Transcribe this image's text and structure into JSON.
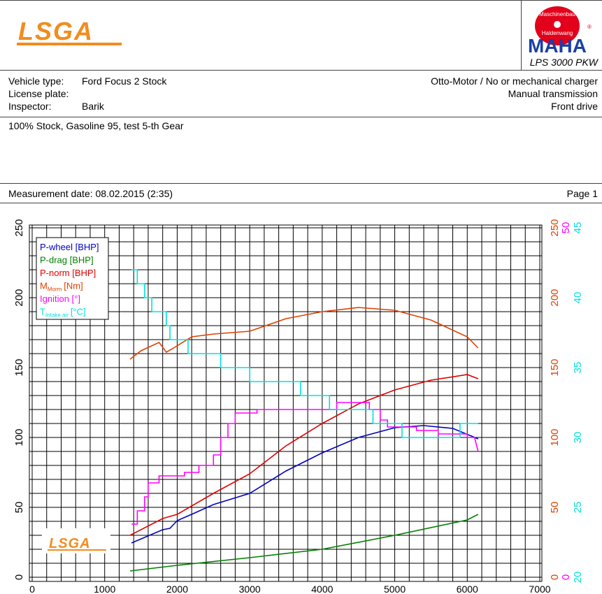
{
  "header": {
    "logo": "LSGA",
    "maha_top": "Maschinenbau",
    "maha_bottom": "Haldenwang",
    "maha_name": "MAHA",
    "maha_reg": "®",
    "model": "LPS 3000 PKW"
  },
  "vehicle": {
    "type_label": "Vehicle type:",
    "type": "Ford Focus 2 Stock",
    "plate_label": "License plate:",
    "inspector_label": "Inspector:",
    "inspector": "Barik",
    "engine": "Otto-Motor / No or mechanical charger",
    "transmission": "Manual transmission",
    "drive": "Front drive"
  },
  "comment": "100% Stock, Gasoline 95, test 5-th Gear",
  "measurement": "Measurement date: 08.02.2015 (2:35)",
  "page": "Page 1",
  "chart_data": {
    "type": "line",
    "xlim": [
      0,
      7000
    ],
    "xticks": [
      0,
      1000,
      2000,
      3000,
      4000,
      5000,
      6000,
      7000
    ],
    "ylim": [
      0,
      250
    ],
    "yticks": [
      0,
      50,
      100,
      150,
      200,
      250
    ],
    "y2lim": [
      0,
      250
    ],
    "y2ticks": [
      0,
      50,
      100,
      150,
      200,
      250
    ],
    "y3lim": [
      0,
      50
    ],
    "y3ticks": [
      0,
      50
    ],
    "y4lim": [
      20,
      45
    ],
    "y4ticks": [
      20,
      25,
      30,
      35,
      40,
      45
    ],
    "grid": {
      "x_step": 200,
      "y_step": 10
    },
    "legend": "upper left",
    "series": [
      {
        "name": "P-wheel [BHP]",
        "color": "#0000c0",
        "x": [
          1370,
          1800,
          1900,
          2000,
          2200,
          2500,
          3000,
          3500,
          4000,
          4500,
          5000,
          5400,
          5800,
          6150
        ],
        "values": [
          24.5,
          34,
          35,
          40.5,
          45,
          52,
          60,
          76,
          89,
          100,
          107,
          108.5,
          106.5,
          99
        ]
      },
      {
        "name": "P-drag [BHP]",
        "color": "#008000",
        "x": [
          1350,
          2000,
          3000,
          4000,
          5000,
          6000,
          6150
        ],
        "values": [
          4.5,
          8.5,
          14,
          20,
          30,
          41,
          45
        ]
      },
      {
        "name": "P-norm [BHP]",
        "color": "#e00000",
        "x": [
          1350,
          1800,
          2000,
          2500,
          3000,
          3500,
          4000,
          4500,
          5000,
          5500,
          6000,
          6150
        ],
        "values": [
          30,
          42,
          45,
          60,
          74,
          94,
          110,
          124,
          134,
          141,
          145,
          142
        ]
      },
      {
        "name": "M",
        "subscript": "Morm",
        "unit": "[Nm]",
        "color": "#e04000",
        "axis": "y2",
        "x": [
          1350,
          1500,
          1750,
          1850,
          1950,
          2200,
          2500,
          3000,
          3500,
          4000,
          4500,
          5000,
          5500,
          6000,
          6150
        ],
        "values": [
          156,
          162,
          168,
          161,
          164,
          172,
          174,
          176,
          185,
          190,
          193,
          191,
          184,
          172,
          164
        ]
      },
      {
        "name": "Ignition [°]",
        "color": "#ff00ff",
        "axis": "y3",
        "x": [
          1370,
          1450,
          1450,
          1550,
          1550,
          1600,
          1600,
          1750,
          1750,
          2100,
          2100,
          2300,
          2300,
          2500,
          2500,
          2600,
          2600,
          2700,
          2700,
          2800,
          2800,
          3100,
          3100,
          4200,
          4200,
          4650,
          4650,
          4800,
          4800,
          4900,
          4900,
          5300,
          5300,
          5600,
          5600,
          6000,
          6000,
          6100,
          6150
        ],
        "values": [
          7.6,
          7.6,
          9.5,
          9.5,
          11.5,
          11.5,
          13.5,
          13.5,
          14.5,
          14.5,
          15,
          15,
          16,
          16,
          17.5,
          17.5,
          20,
          20,
          22,
          22,
          23.5,
          23.5,
          24,
          24,
          25,
          25,
          24,
          24,
          22.5,
          22.5,
          21.5,
          21.5,
          21,
          21,
          20.5,
          20.5,
          20,
          20,
          18
        ]
      },
      {
        "name": "T",
        "subscript": "Intake air",
        "unit": "[°C]",
        "color": "#00e0e0",
        "axis": "y4",
        "x": [
          1370,
          1450,
          1450,
          1550,
          1550,
          1650,
          1650,
          1850,
          1850,
          1900,
          1900,
          2150,
          2150,
          2600,
          2600,
          3000,
          3000,
          3700,
          3700,
          4100,
          4100,
          4700,
          4700,
          5100,
          5100,
          5900,
          5900,
          6150
        ],
        "values": [
          42,
          42,
          41,
          41,
          40,
          40,
          39,
          39,
          38,
          38,
          37,
          37,
          36,
          36,
          35,
          35,
          34,
          34,
          33,
          33,
          32,
          32,
          31,
          31,
          30,
          30,
          31,
          31
        ]
      }
    ]
  }
}
